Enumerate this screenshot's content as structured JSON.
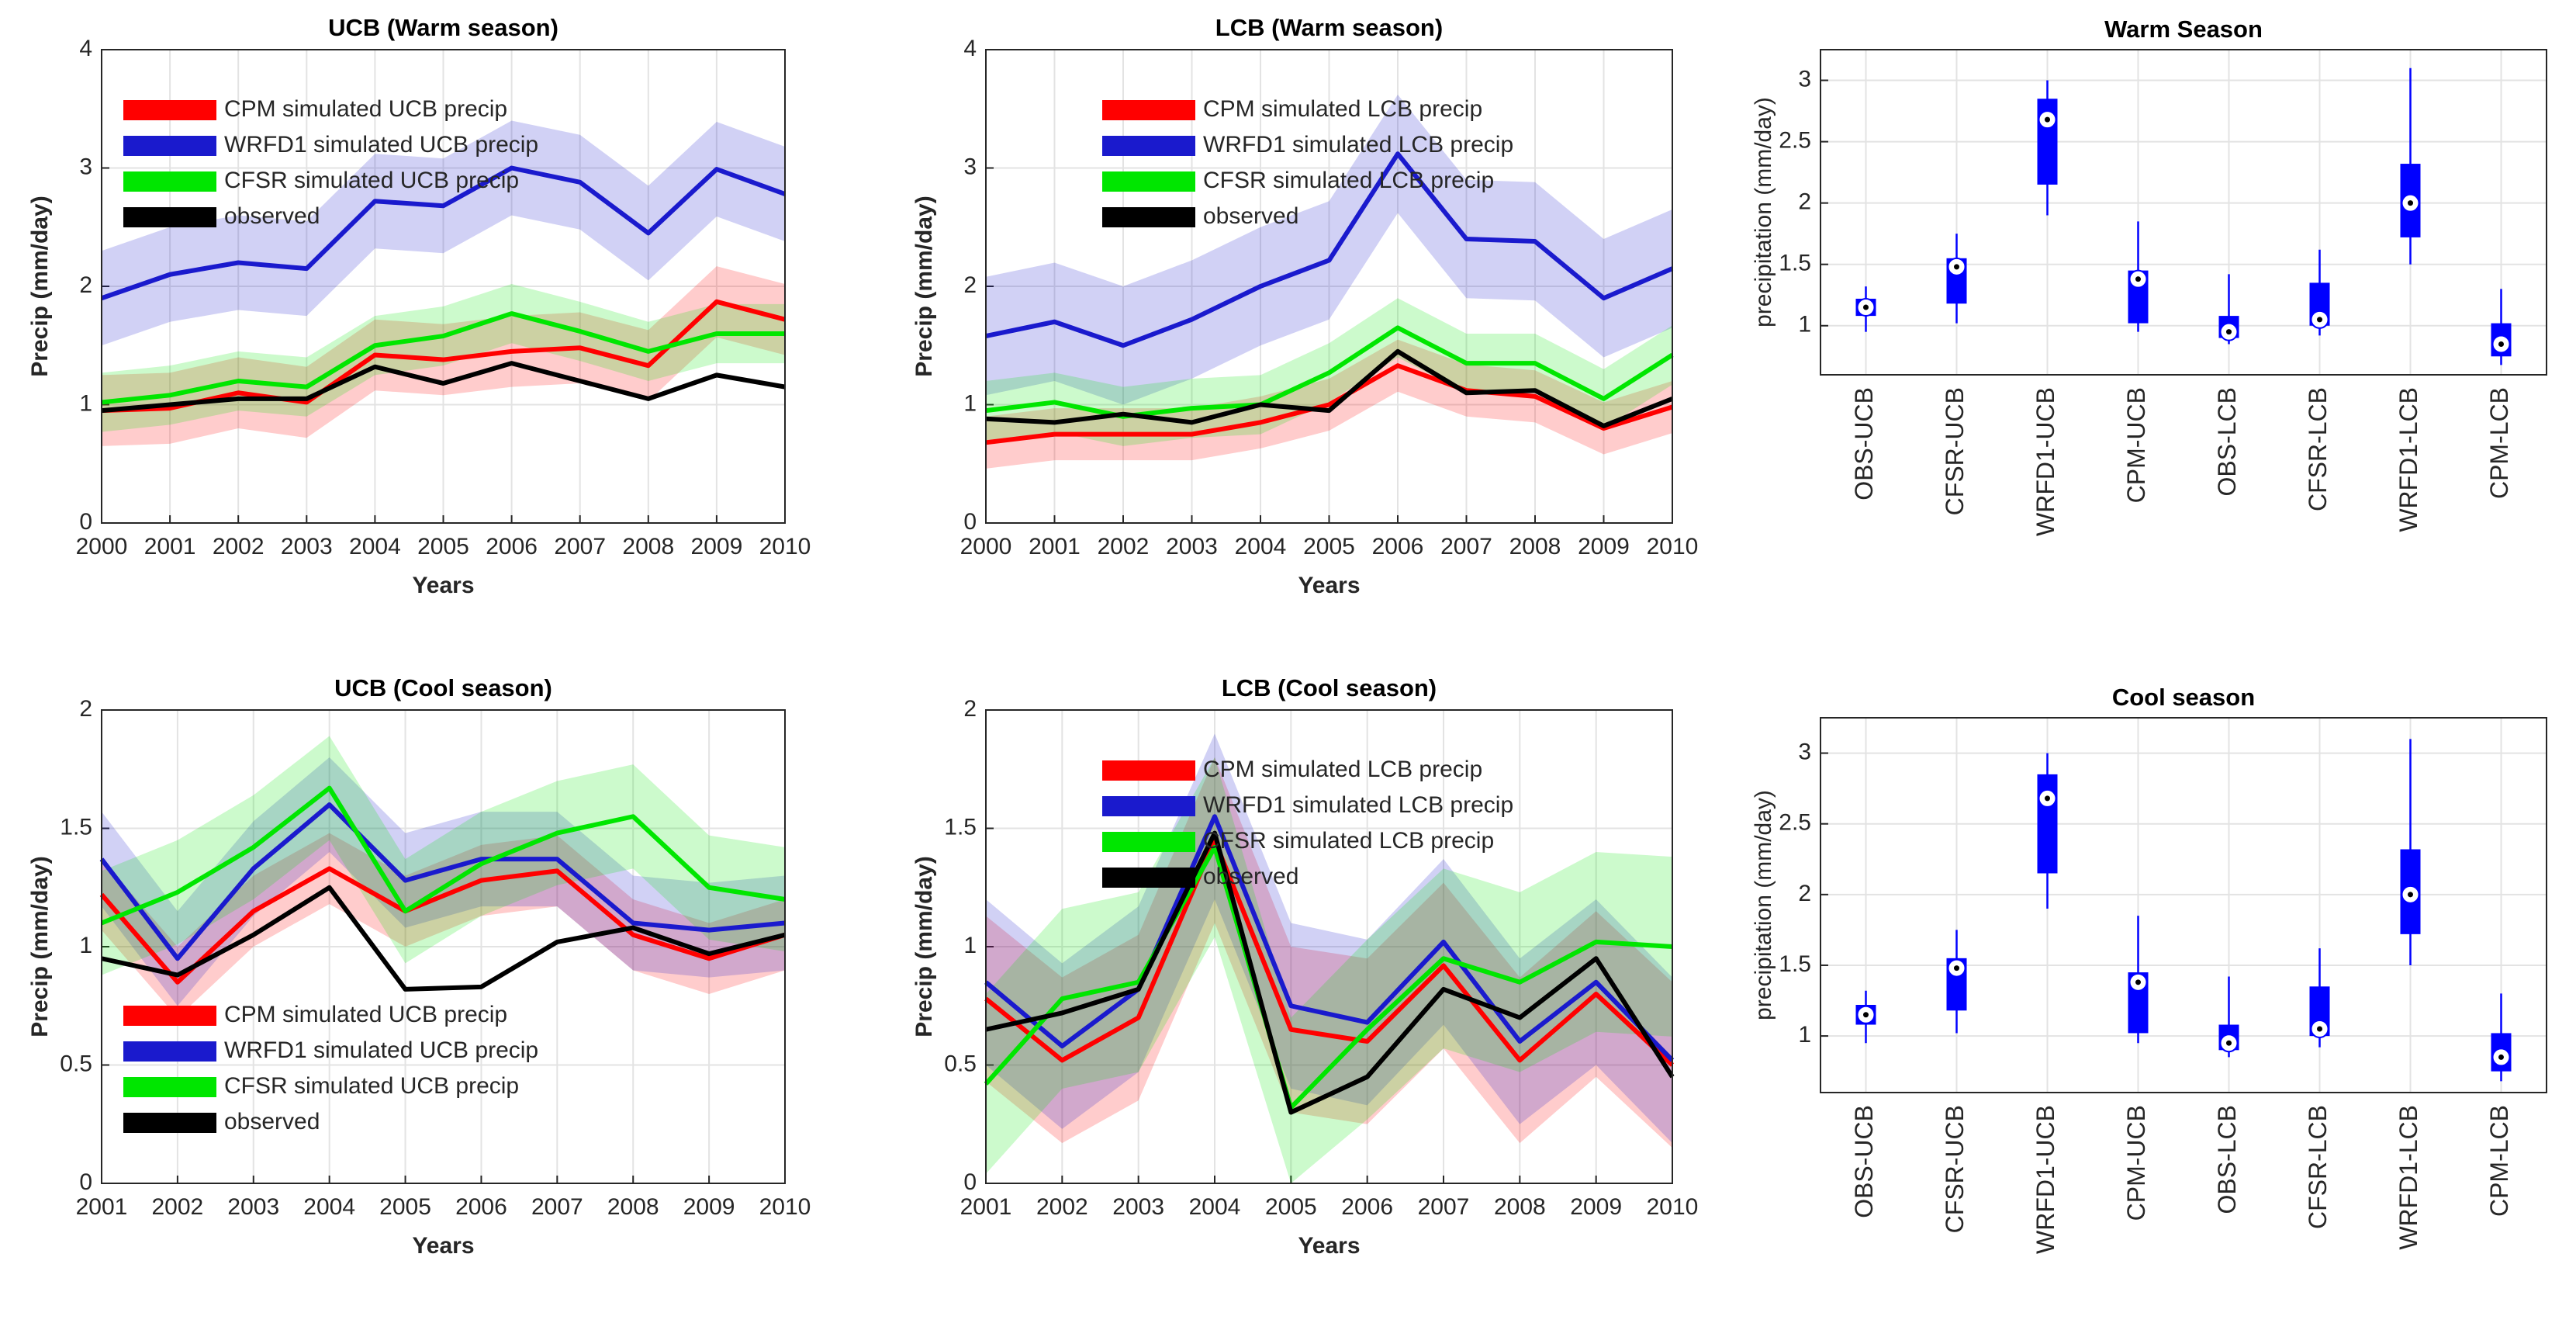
{
  "chart_data": [
    {
      "type": "line",
      "title": "UCB (Warm season)",
      "xlabel": "Years",
      "ylabel": "Precip (mm/day)",
      "x": [
        2000,
        2001,
        2002,
        2003,
        2004,
        2005,
        2006,
        2007,
        2008,
        2009,
        2010
      ],
      "xlim": [
        2000,
        2010
      ],
      "xticks": [
        2000,
        2001,
        2002,
        2003,
        2004,
        2005,
        2006,
        2007,
        2008,
        2009,
        2010
      ],
      "ylim": [
        0,
        4
      ],
      "yticks": [
        0,
        1,
        2,
        3,
        4
      ],
      "grid": true,
      "legend": "upper left",
      "series": [
        {
          "name": "CPM simulated UCB precip",
          "color": "#ff0000",
          "values": [
            0.95,
            0.97,
            1.1,
            1.02,
            1.42,
            1.38,
            1.45,
            1.48,
            1.33,
            1.87,
            1.72
          ],
          "lower": [
            0.65,
            0.67,
            0.8,
            0.72,
            1.12,
            1.08,
            1.15,
            1.18,
            1.03,
            1.57,
            1.42
          ],
          "upper": [
            1.25,
            1.27,
            1.4,
            1.32,
            1.72,
            1.68,
            1.75,
            1.78,
            1.63,
            2.17,
            2.02
          ]
        },
        {
          "name": "WRFD1 simulated UCB precip",
          "color": "#1a1acd",
          "values": [
            1.9,
            2.1,
            2.2,
            2.15,
            2.72,
            2.68,
            3.0,
            2.88,
            2.45,
            2.99,
            2.78
          ],
          "lower": [
            1.5,
            1.7,
            1.8,
            1.75,
            2.32,
            2.28,
            2.6,
            2.48,
            2.05,
            2.59,
            2.38
          ],
          "upper": [
            2.3,
            2.5,
            2.6,
            2.55,
            3.12,
            3.08,
            3.4,
            3.28,
            2.85,
            3.39,
            3.18
          ]
        },
        {
          "name": "CFSR simulated UCB precip",
          "color": "#00e600",
          "values": [
            1.02,
            1.08,
            1.2,
            1.15,
            1.5,
            1.58,
            1.77,
            1.62,
            1.45,
            1.6,
            1.6
          ],
          "lower": [
            0.77,
            0.83,
            0.95,
            0.9,
            1.25,
            1.33,
            1.52,
            1.37,
            1.2,
            1.35,
            1.35
          ],
          "upper": [
            1.27,
            1.33,
            1.45,
            1.4,
            1.75,
            1.83,
            2.02,
            1.87,
            1.7,
            1.85,
            1.85
          ]
        },
        {
          "name": "observed",
          "color": "#000000",
          "values": [
            0.95,
            1.0,
            1.05,
            1.05,
            1.32,
            1.18,
            1.35,
            1.2,
            1.05,
            1.25,
            1.15
          ]
        }
      ]
    },
    {
      "type": "line",
      "title": "LCB (Warm season)",
      "xlabel": "Years",
      "ylabel": "Precip (mm/day)",
      "x": [
        2000,
        2001,
        2002,
        2003,
        2004,
        2005,
        2006,
        2007,
        2008,
        2009,
        2010
      ],
      "xlim": [
        2000,
        2010
      ],
      "xticks": [
        2000,
        2001,
        2002,
        2003,
        2004,
        2005,
        2006,
        2007,
        2008,
        2009,
        2010
      ],
      "ylim": [
        0,
        4
      ],
      "yticks": [
        0,
        1,
        2,
        3,
        4
      ],
      "grid": true,
      "legend": "upper left",
      "series": [
        {
          "name": "CPM simulated LCB precip",
          "color": "#ff0000",
          "values": [
            0.68,
            0.75,
            0.75,
            0.75,
            0.85,
            1.0,
            1.33,
            1.12,
            1.07,
            0.8,
            0.98
          ],
          "lower": [
            0.46,
            0.53,
            0.53,
            0.53,
            0.63,
            0.78,
            1.11,
            0.9,
            0.85,
            0.58,
            0.76
          ],
          "upper": [
            0.9,
            0.97,
            0.97,
            0.97,
            1.07,
            1.22,
            1.55,
            1.34,
            1.29,
            1.02,
            1.2
          ]
        },
        {
          "name": "WRFD1 simulated LCB precip",
          "color": "#1a1acd",
          "values": [
            1.58,
            1.7,
            1.5,
            1.72,
            2.0,
            2.22,
            3.12,
            2.4,
            2.38,
            1.9,
            2.15
          ],
          "lower": [
            1.08,
            1.2,
            1.0,
            1.22,
            1.5,
            1.72,
            2.62,
            1.9,
            1.88,
            1.4,
            1.65
          ],
          "upper": [
            2.08,
            2.2,
            2.0,
            2.22,
            2.5,
            2.72,
            3.62,
            2.9,
            2.88,
            2.4,
            2.65
          ]
        },
        {
          "name": "CFSR simulated LCB precip",
          "color": "#00e600",
          "values": [
            0.95,
            1.02,
            0.9,
            0.97,
            1.0,
            1.27,
            1.65,
            1.35,
            1.35,
            1.05,
            1.42
          ],
          "lower": [
            0.7,
            0.77,
            0.65,
            0.72,
            0.75,
            1.02,
            1.4,
            1.1,
            1.1,
            0.8,
            1.17
          ],
          "upper": [
            1.2,
            1.27,
            1.15,
            1.22,
            1.25,
            1.52,
            1.9,
            1.6,
            1.6,
            1.3,
            1.67
          ]
        },
        {
          "name": "observed",
          "color": "#000000",
          "values": [
            0.88,
            0.85,
            0.92,
            0.85,
            1.0,
            0.95,
            1.45,
            1.1,
            1.12,
            0.82,
            1.05
          ]
        }
      ]
    },
    {
      "type": "box",
      "title": "Warm Season",
      "ylabel": "precipitation (mm/day)",
      "color": "#0000ff",
      "categories": [
        "OBS-UCB",
        "CFSR-UCB",
        "WRFD1-UCB",
        "CPM-UCB",
        "OBS-LCB",
        "CFSR-LCB",
        "WRFD1-LCB",
        "CPM-LCB"
      ],
      "boxes": [
        {
          "median": 1.15,
          "q1": 1.08,
          "q3": 1.22,
          "whislo": 0.95,
          "whishi": 1.32
        },
        {
          "median": 1.48,
          "q1": 1.18,
          "q3": 1.55,
          "whislo": 1.02,
          "whishi": 1.75
        },
        {
          "median": 2.68,
          "q1": 2.15,
          "q3": 2.85,
          "whislo": 1.9,
          "whishi": 3.0
        },
        {
          "median": 1.38,
          "q1": 1.02,
          "q3": 1.45,
          "whislo": 0.95,
          "whishi": 1.85
        },
        {
          "median": 0.95,
          "q1": 0.9,
          "q3": 1.08,
          "whislo": 0.85,
          "whishi": 1.42
        },
        {
          "median": 1.05,
          "q1": 1.0,
          "q3": 1.35,
          "whislo": 0.92,
          "whishi": 1.62
        },
        {
          "median": 2.0,
          "q1": 1.72,
          "q3": 2.32,
          "whislo": 1.5,
          "whishi": 3.1
        },
        {
          "median": 0.85,
          "q1": 0.75,
          "q3": 1.02,
          "whislo": 0.68,
          "whishi": 1.3
        }
      ],
      "ylim": [
        0.6,
        3.25
      ],
      "yticks": [
        1,
        1.5,
        2,
        2.5,
        3
      ],
      "grid": true
    },
    {
      "type": "line",
      "title": "UCB (Cool season)",
      "xlabel": "Years",
      "ylabel": "Precip (mm/day)",
      "x": [
        2001,
        2002,
        2003,
        2004,
        2005,
        2006,
        2007,
        2008,
        2009,
        2010
      ],
      "xlim": [
        2001,
        2010
      ],
      "xticks": [
        2001,
        2002,
        2003,
        2004,
        2005,
        2006,
        2007,
        2008,
        2009,
        2010
      ],
      "ylim": [
        0,
        2
      ],
      "yticks": [
        0,
        0.5,
        1,
        1.5,
        2
      ],
      "grid": true,
      "legend": "lower left",
      "series": [
        {
          "name": "CPM simulated UCB precip",
          "color": "#ff0000",
          "values": [
            1.22,
            0.85,
            1.15,
            1.33,
            1.15,
            1.28,
            1.32,
            1.05,
            0.95,
            1.05
          ],
          "lower": [
            1.07,
            0.7,
            1.0,
            1.18,
            1.0,
            1.13,
            1.17,
            0.9,
            0.8,
            0.9
          ],
          "upper": [
            1.37,
            1.0,
            1.3,
            1.48,
            1.3,
            1.43,
            1.47,
            1.2,
            1.1,
            1.2
          ]
        },
        {
          "name": "WRFD1 simulated UCB precip",
          "color": "#1a1acd",
          "values": [
            1.37,
            0.95,
            1.33,
            1.6,
            1.28,
            1.37,
            1.37,
            1.1,
            1.07,
            1.1
          ],
          "lower": [
            1.17,
            0.75,
            1.13,
            1.4,
            1.08,
            1.17,
            1.17,
            0.9,
            0.87,
            0.9
          ],
          "upper": [
            1.57,
            1.15,
            1.53,
            1.8,
            1.48,
            1.57,
            1.57,
            1.3,
            1.27,
            1.3
          ]
        },
        {
          "name": "CFSR simulated UCB precip",
          "color": "#00e600",
          "values": [
            1.1,
            1.23,
            1.42,
            1.67,
            1.15,
            1.35,
            1.48,
            1.55,
            1.25,
            1.2
          ],
          "lower": [
            0.88,
            1.01,
            1.2,
            1.45,
            0.93,
            1.13,
            1.26,
            1.33,
            1.03,
            0.98
          ],
          "upper": [
            1.32,
            1.45,
            1.64,
            1.89,
            1.37,
            1.57,
            1.7,
            1.77,
            1.47,
            1.42
          ]
        },
        {
          "name": "observed",
          "color": "#000000",
          "values": [
            0.95,
            0.88,
            1.05,
            1.25,
            0.82,
            0.83,
            1.02,
            1.08,
            0.97,
            1.05
          ]
        }
      ]
    },
    {
      "type": "line",
      "title": "LCB (Cool season)",
      "xlabel": "Years",
      "ylabel": "Precip (mm/day)",
      "x": [
        2001,
        2002,
        2003,
        2004,
        2005,
        2006,
        2007,
        2008,
        2009,
        2010
      ],
      "xlim": [
        2001,
        2010
      ],
      "xticks": [
        2001,
        2002,
        2003,
        2004,
        2005,
        2006,
        2007,
        2008,
        2009,
        2010
      ],
      "ylim": [
        0,
        2
      ],
      "yticks": [
        0,
        0.5,
        1,
        1.5,
        2
      ],
      "grid": true,
      "legend": "upper left",
      "series": [
        {
          "name": "CPM simulated LCB precip",
          "color": "#ff0000",
          "values": [
            0.78,
            0.52,
            0.7,
            1.45,
            0.65,
            0.6,
            0.92,
            0.52,
            0.8,
            0.5
          ],
          "lower": [
            0.43,
            0.17,
            0.35,
            1.1,
            0.3,
            0.25,
            0.57,
            0.17,
            0.45,
            0.15
          ],
          "upper": [
            1.13,
            0.87,
            1.05,
            1.8,
            1.0,
            0.95,
            1.27,
            0.87,
            1.15,
            0.85
          ]
        },
        {
          "name": "WRFD1 simulated LCB precip",
          "color": "#1a1acd",
          "values": [
            0.85,
            0.58,
            0.82,
            1.55,
            0.75,
            0.68,
            1.02,
            0.6,
            0.85,
            0.52
          ],
          "lower": [
            0.5,
            0.23,
            0.47,
            1.2,
            0.4,
            0.33,
            0.67,
            0.25,
            0.5,
            0.17
          ],
          "upper": [
            1.2,
            0.93,
            1.17,
            1.9,
            1.1,
            1.03,
            1.37,
            0.95,
            1.2,
            0.87
          ]
        },
        {
          "name": "CFSR simulated LCB precip",
          "color": "#00e600",
          "values": [
            0.42,
            0.78,
            0.85,
            1.42,
            0.32,
            0.65,
            0.95,
            0.85,
            1.02,
            1.0
          ],
          "lower": [
            0.04,
            0.4,
            0.47,
            1.04,
            0,
            0.27,
            0.57,
            0.47,
            0.64,
            0.62
          ],
          "upper": [
            0.8,
            1.16,
            1.23,
            1.8,
            0.7,
            1.03,
            1.33,
            1.23,
            1.4,
            1.38
          ]
        },
        {
          "name": "observed",
          "color": "#000000",
          "values": [
            0.65,
            0.72,
            0.82,
            1.48,
            0.3,
            0.45,
            0.82,
            0.7,
            0.95,
            0.45
          ]
        }
      ]
    },
    {
      "type": "box",
      "title": "Cool season",
      "ylabel": "precipitation (mm/day)",
      "color": "#0000ff",
      "categories": [
        "OBS-UCB",
        "CFSR-UCB",
        "WRFD1-UCB",
        "CPM-UCB",
        "OBS-LCB",
        "CFSR-LCB",
        "WRFD1-LCB",
        "CPM-LCB"
      ],
      "boxes": [
        {
          "median": 1.15,
          "q1": 1.08,
          "q3": 1.22,
          "whislo": 0.95,
          "whishi": 1.32
        },
        {
          "median": 1.48,
          "q1": 1.18,
          "q3": 1.55,
          "whislo": 1.02,
          "whishi": 1.75
        },
        {
          "median": 2.68,
          "q1": 2.15,
          "q3": 2.85,
          "whislo": 1.9,
          "whishi": 3.0
        },
        {
          "median": 1.38,
          "q1": 1.02,
          "q3": 1.45,
          "whislo": 0.95,
          "whishi": 1.85
        },
        {
          "median": 0.95,
          "q1": 0.9,
          "q3": 1.08,
          "whislo": 0.85,
          "whishi": 1.42
        },
        {
          "median": 1.05,
          "q1": 1.0,
          "q3": 1.35,
          "whislo": 0.92,
          "whishi": 1.62
        },
        {
          "median": 2.0,
          "q1": 1.72,
          "q3": 2.32,
          "whislo": 1.5,
          "whishi": 3.1
        },
        {
          "median": 0.85,
          "q1": 0.75,
          "q3": 1.02,
          "whislo": 0.68,
          "whishi": 1.3
        }
      ],
      "ylim": [
        0.6,
        3.25
      ],
      "yticks": [
        1,
        1.5,
        2,
        2.5,
        3
      ],
      "grid": true
    }
  ]
}
